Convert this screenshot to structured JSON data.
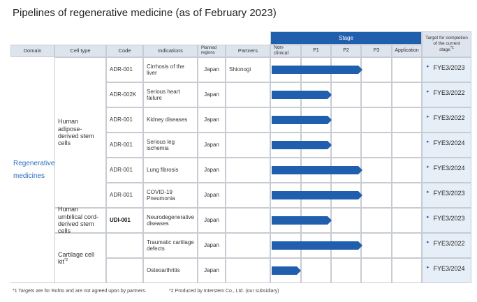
{
  "title": "Pipelines of regenerative medicine (as of February 2023)",
  "headers": {
    "domain": "Domain",
    "cell_type": "Cell type",
    "code": "Code",
    "indications": "Indications",
    "regions": "Planned regions",
    "partners": "Partners",
    "stage": "Stage",
    "stages": [
      "Non-clinical",
      "P1",
      "P2",
      "P3",
      "Application"
    ],
    "target": "Target for completion of the current stage",
    "target_note": "*1"
  },
  "domain": "Regenerative medicines",
  "groups": [
    {
      "label": "Human adipose-derived stem cells",
      "rows": [
        {
          "code": "ADR-001",
          "indication": "Cirrhosis of the liver",
          "region": "Japan",
          "partner": "Shionogi",
          "progress": 3,
          "target": "FYE3/2023"
        },
        {
          "code": "ADR-002K",
          "indication": "Serious heart failure",
          "region": "Japan",
          "progress": 2,
          "target": "FYE3/2022"
        },
        {
          "code": "ADR-001",
          "indication": "Kidney diseases",
          "region": "Japan",
          "progress": 2,
          "target": "FYE3/2022"
        },
        {
          "code": "ADR-001",
          "indication": "Serious leg ischemia",
          "region": "Japan",
          "progress": 2,
          "target": "FYE3/2024"
        },
        {
          "code": "ADR-001",
          "indication": "Lung fibrosis",
          "region": "Japan",
          "progress": 3,
          "target": "FYE3/2024"
        },
        {
          "code": "ADR-001",
          "indication": "COVID-19 Pneumonia",
          "region": "Japan",
          "progress": 3,
          "target": "FYE3/2023"
        }
      ]
    },
    {
      "label": "Human umbilical cord-derived stem cells",
      "rows": [
        {
          "code": "UDI-001",
          "indication": "Neurodegenerative diseases",
          "region": "Japan",
          "progress": 2,
          "target": "FYE3/2023"
        }
      ]
    },
    {
      "label": "Cartilage cell kit",
      "note": "*2",
      "rows": [
        {
          "indication": "Traumatic cartilage defects",
          "region": "Japan",
          "progress": 3,
          "target": "FYE3/2022"
        },
        {
          "indication": "Osteoarthritis",
          "region": "Japan",
          "progress": 1,
          "target": "FYE3/2024"
        }
      ]
    }
  ],
  "footnotes": [
    "*1 Targets are for Rohto and are not agreed upon by partners.",
    "*2 Produced by Interstem Co., Ltd. (our subsidiary)"
  ]
}
